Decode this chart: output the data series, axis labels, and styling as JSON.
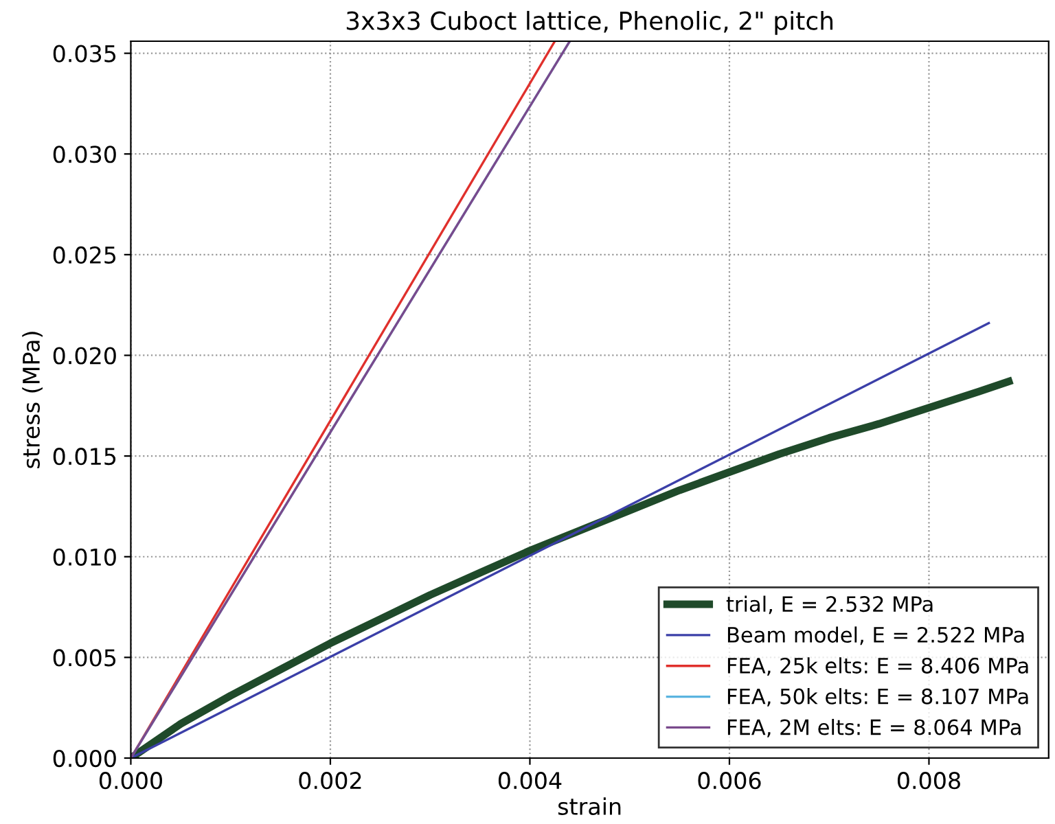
{
  "chart_data": {
    "type": "line",
    "title": "3x3x3 Cuboct lattice, Phenolic, 2\" pitch",
    "xlabel": "strain",
    "ylabel": "stress (MPa)",
    "xlim": [
      0,
      0.0092
    ],
    "ylim": [
      0,
      0.0356
    ],
    "xticks": [
      {
        "value": 0,
        "label": "0.000"
      },
      {
        "value": 0.002,
        "label": "0.002"
      },
      {
        "value": 0.004,
        "label": "0.004"
      },
      {
        "value": 0.006,
        "label": "0.006"
      },
      {
        "value": 0.008,
        "label": "0.008"
      }
    ],
    "yticks": [
      {
        "value": 0,
        "label": "0.000"
      },
      {
        "value": 0.005,
        "label": "0.005"
      },
      {
        "value": 0.01,
        "label": "0.010"
      },
      {
        "value": 0.015,
        "label": "0.015"
      },
      {
        "value": 0.02,
        "label": "0.020"
      },
      {
        "value": 0.025,
        "label": "0.025"
      },
      {
        "value": 0.03,
        "label": "0.030"
      },
      {
        "value": 0.035,
        "label": "0.035"
      }
    ],
    "grid": true,
    "legend": "bottom right",
    "series": [
      {
        "name": "trial, E = 2.532 MPa",
        "color": "#1f4a2a",
        "x": [
          0,
          0.0005,
          0.001,
          0.0015,
          0.002,
          0.0025,
          0.003,
          0.0035,
          0.004,
          0.0045,
          0.005,
          0.0055,
          0.006,
          0.0065,
          0.007,
          0.0075,
          0.008,
          0.0085,
          0.0088
        ],
        "values": [
          0,
          0.0017,
          0.0031,
          0.0044,
          0.0057,
          0.0069,
          0.0081,
          0.0092,
          0.0103,
          0.0113,
          0.0123,
          0.0133,
          0.0142,
          0.0151,
          0.0159,
          0.0166,
          0.0174,
          0.0182,
          0.0187
        ]
      },
      {
        "name": "Beam model, E = 2.522 MPa",
        "color": "#3b3fa8",
        "x": [
          0,
          0.0086
        ],
        "values": [
          0,
          0.0216
        ]
      },
      {
        "name": "FEA, 25k elts: E = 8.406 MPa",
        "color": "#e0302c",
        "x": [
          0,
          0.00425
        ],
        "values": [
          0,
          0.0356
        ]
      },
      {
        "name": "FEA, 50k elts: E = 8.107 MPa",
        "color": "#5ab4e0",
        "x": [
          0,
          0.0044
        ],
        "values": [
          0,
          0.0356
        ]
      },
      {
        "name": "FEA, 2M elts: E = 8.064 MPa",
        "color": "#7a4a8c",
        "x": [
          0,
          0.0044
        ],
        "values": [
          0,
          0.0356
        ]
      }
    ]
  }
}
